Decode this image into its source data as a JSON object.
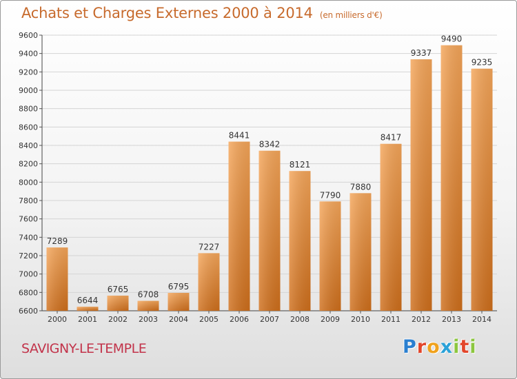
{
  "title": "Achats et Charges Externes 2000 à 2014",
  "unit": "(en milliers d'€)",
  "commune": "SAVIGNY-LE-TEMPLE",
  "logo": {
    "text": "Proxiti",
    "letters": [
      {
        "char": "P",
        "color": "#2a7fd0"
      },
      {
        "char": "r",
        "color": "#e2462b"
      },
      {
        "char": "o",
        "color": "#f0a21d"
      },
      {
        "char": "x",
        "color": "#2aa1d8"
      },
      {
        "char": "i",
        "color": "#8cc63f"
      },
      {
        "char": "t",
        "color": "#e2462b"
      },
      {
        "char": "i",
        "color": "#8cc63f"
      }
    ]
  },
  "colors": {
    "bar_light": "#f5a65a",
    "bar_dark": "#cf6f1c",
    "title": "#c76a2c",
    "commune": "#c2334a",
    "grid": "#d4d4d4"
  },
  "chart_data": {
    "type": "bar",
    "categories": [
      "2000",
      "2001",
      "2002",
      "2003",
      "2004",
      "2005",
      "2006",
      "2007",
      "2008",
      "2009",
      "2010",
      "2011",
      "2012",
      "2013",
      "2014"
    ],
    "values": [
      7289,
      6644,
      6765,
      6708,
      6795,
      7227,
      8441,
      8342,
      8121,
      7790,
      7880,
      8417,
      9337,
      9490,
      9235
    ],
    "ylim": [
      6600,
      9600
    ],
    "yticks": [
      6600,
      6800,
      7000,
      7200,
      7400,
      7600,
      7800,
      8000,
      8200,
      8400,
      8600,
      8800,
      9000,
      9200,
      9400,
      9600
    ],
    "grid": true,
    "data_labels": true,
    "xlabel": "",
    "ylabel": ""
  }
}
